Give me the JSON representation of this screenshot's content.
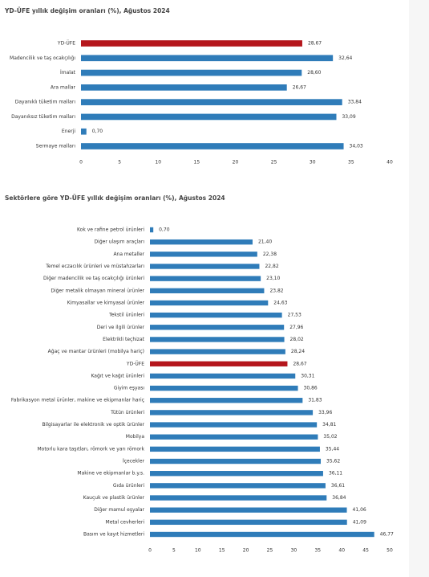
{
  "chart_data": [
    {
      "type": "hbar",
      "title": "YD-ÜFE yıllık değişim oranları (%), Ağustos 2024",
      "categories": [
        "YD-ÜFE",
        "Madencilik ve taş ocakçılığı",
        "İmalat",
        "Ara mallar",
        "Dayanıklı tüketim malları",
        "Dayanıksız tüketim malları",
        "Enerji",
        "Sermaye malları"
      ],
      "values": [
        28.67,
        32.64,
        28.6,
        26.67,
        33.84,
        33.09,
        0.7,
        34.03
      ],
      "value_labels": [
        "28,67",
        "32,64",
        "28,60",
        "26,67",
        "33,84",
        "33,09",
        "0,70",
        "34,03"
      ],
      "colors": [
        "#b5161c",
        "#2f7cb9",
        "#2f7cb9",
        "#2f7cb9",
        "#2f7cb9",
        "#2f7cb9",
        "#2f7cb9",
        "#2f7cb9"
      ],
      "xlim": [
        0,
        40
      ],
      "xticks": [
        0,
        5,
        10,
        15,
        20,
        25,
        30,
        35,
        40
      ]
    },
    {
      "type": "hbar",
      "title": "Sektörlere göre YD-ÜFE yıllık değişim oranları (%), Ağustos 2024",
      "categories": [
        "Kok ve rafine petrol ürünleri",
        "Diğer ulaşım araçları",
        "Ana metaller",
        "Temel eczacılık ürünleri ve müstahzarları",
        "Diğer madencilik ve taş ocakçılığı ürünleri",
        "Diğer metalik olmayan mineral ürünler",
        "Kimyasallar ve kimyasal ürünler",
        "Tekstil ürünleri",
        "Deri ve ilgili ürünler",
        "Elektrikli teçhizat",
        "Ağaç ve mantar ürünleri (mobilya hariç)",
        "YD-ÜFE",
        "Kağıt ve kağıt ürünleri",
        "Giyim eşyası",
        "Fabrikasyon metal ürünler, makine ve ekipmanlar hariç",
        "Tütün ürünleri",
        "Bilgisayarlar ile elektronik ve optik ürünler",
        "Mobilya",
        "Motorlu kara taşıtları, römork ve yarı römork",
        "İçecekler",
        "Makine ve ekipmanlar b.y.s.",
        "Gıda ürünleri",
        "Kauçuk ve plastik ürünler",
        "Diğer mamul eşyalar",
        "Metal cevherleri",
        "Basım ve kayıt hizmetleri"
      ],
      "values": [
        0.7,
        21.4,
        22.38,
        22.82,
        23.1,
        23.82,
        24.63,
        27.53,
        27.96,
        28.02,
        28.24,
        28.67,
        30.31,
        30.86,
        31.83,
        33.96,
        34.81,
        35.02,
        35.44,
        35.62,
        36.11,
        36.61,
        36.84,
        41.06,
        41.09,
        46.77
      ],
      "value_labels": [
        "0,70",
        "21,40",
        "22,38",
        "22,82",
        "23,10",
        "23,82",
        "24,63",
        "27,53",
        "27,96",
        "28,02",
        "28,24",
        "28,67",
        "30,31",
        "30,86",
        "31,83",
        "33,96",
        "34,81",
        "35,02",
        "35,44",
        "35,62",
        "36,11",
        "36,61",
        "36,84",
        "41,06",
        "41,09",
        "46,77"
      ],
      "colors": [
        "#2f7cb9",
        "#2f7cb9",
        "#2f7cb9",
        "#2f7cb9",
        "#2f7cb9",
        "#2f7cb9",
        "#2f7cb9",
        "#2f7cb9",
        "#2f7cb9",
        "#2f7cb9",
        "#2f7cb9",
        "#b5161c",
        "#2f7cb9",
        "#2f7cb9",
        "#2f7cb9",
        "#2f7cb9",
        "#2f7cb9",
        "#2f7cb9",
        "#2f7cb9",
        "#2f7cb9",
        "#2f7cb9",
        "#2f7cb9",
        "#2f7cb9",
        "#2f7cb9",
        "#2f7cb9",
        "#2f7cb9"
      ],
      "xlim": [
        0,
        50
      ],
      "xticks": [
        0,
        5,
        10,
        15,
        20,
        25,
        30,
        35,
        40,
        45,
        50
      ]
    }
  ]
}
